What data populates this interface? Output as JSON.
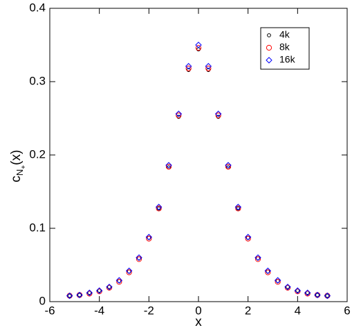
{
  "chart_data": {
    "type": "scatter",
    "x_label": "x",
    "y_label": {
      "main": "c",
      "sub": "N",
      "subsub": "+",
      "tail": "(x)"
    },
    "x": [
      -5.2,
      -4.8,
      -4.4,
      -4.0,
      -3.6,
      -3.2,
      -2.8,
      -2.4,
      -2.0,
      -1.6,
      -1.2,
      -0.8,
      -0.4,
      0,
      0.4,
      0.8,
      1.2,
      1.6,
      2.0,
      2.4,
      2.8,
      3.2,
      3.6,
      4.0,
      4.4,
      4.8,
      5.2
    ],
    "series": [
      {
        "name": "4k",
        "color": "#000000",
        "marker": "circle",
        "values": [
          0.008,
          0.009,
          0.012,
          0.015,
          0.02,
          0.028,
          0.041,
          0.059,
          0.087,
          0.127,
          0.183,
          0.252,
          0.316,
          0.344,
          0.316,
          0.252,
          0.183,
          0.127,
          0.087,
          0.059,
          0.041,
          0.028,
          0.02,
          0.015,
          0.012,
          0.009,
          0.008
        ]
      },
      {
        "name": "8k",
        "color": "#ff0000",
        "marker": "circle-large",
        "values": [
          0.008,
          0.009,
          0.011,
          0.014,
          0.019,
          0.027,
          0.04,
          0.058,
          0.086,
          0.127,
          0.184,
          0.254,
          0.318,
          0.346,
          0.318,
          0.254,
          0.184,
          0.127,
          0.086,
          0.058,
          0.04,
          0.027,
          0.019,
          0.014,
          0.011,
          0.009,
          0.008
        ]
      },
      {
        "name": "16k",
        "color": "#0000ff",
        "marker": "diamond",
        "values": [
          0.008,
          0.009,
          0.012,
          0.015,
          0.02,
          0.029,
          0.042,
          0.06,
          0.088,
          0.129,
          0.186,
          0.256,
          0.321,
          0.35,
          0.321,
          0.256,
          0.186,
          0.129,
          0.088,
          0.06,
          0.042,
          0.029,
          0.02,
          0.015,
          0.012,
          0.009,
          0.008
        ]
      }
    ],
    "xlim": [
      -6,
      6
    ],
    "xticks": [
      -6,
      -4,
      -2,
      0,
      2,
      4,
      6
    ],
    "ylim": [
      0,
      0.4
    ],
    "yticks": [
      0,
      0.1,
      0.2,
      0.3,
      0.4
    ],
    "legend": "top-right"
  }
}
